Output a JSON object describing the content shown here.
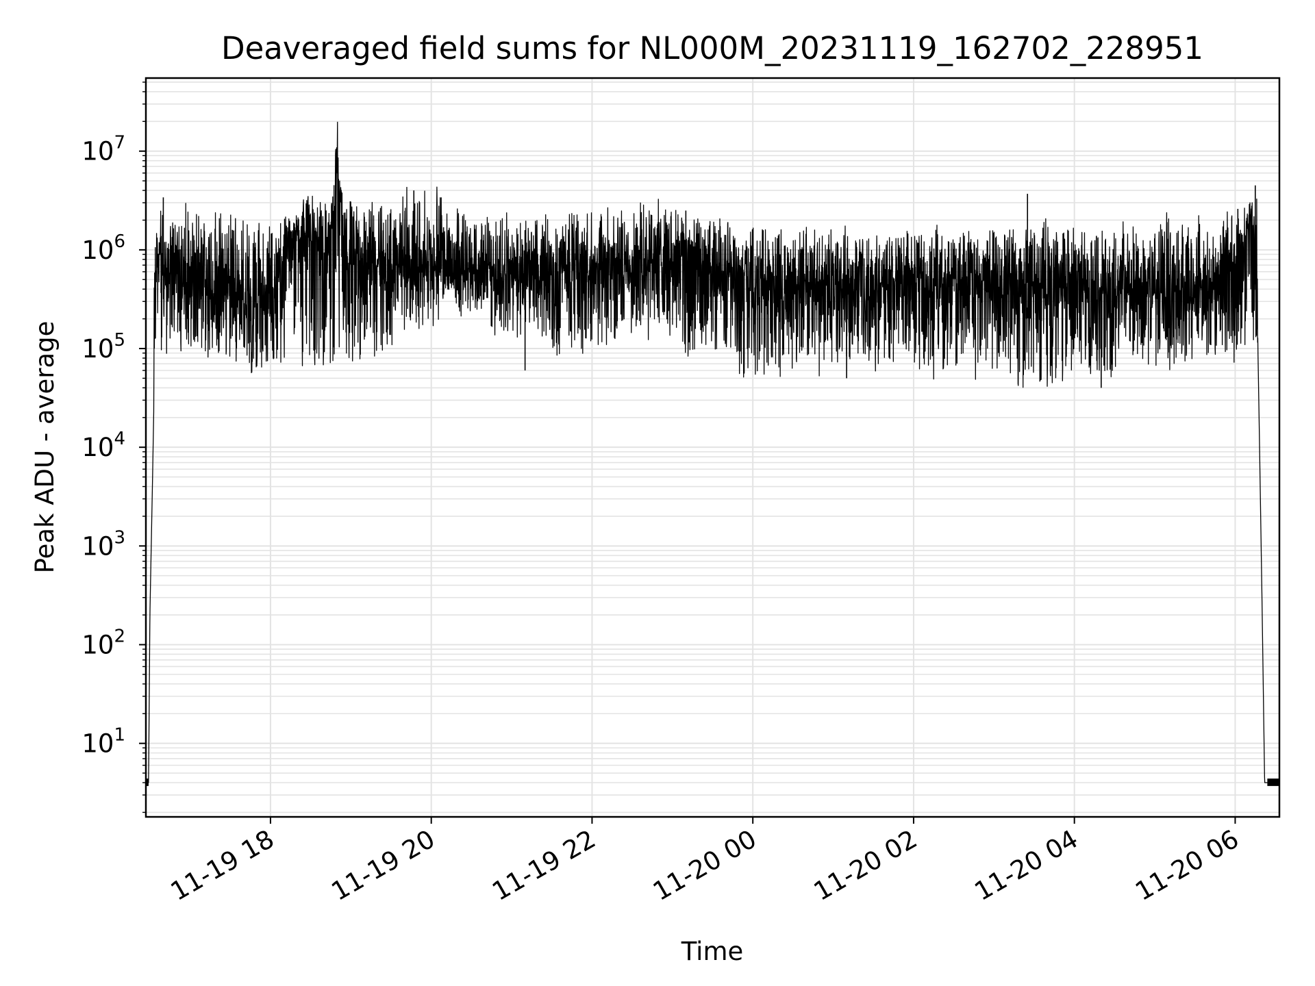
{
  "chart_data": {
    "type": "line",
    "title": "Deaveraged field sums for NL000M_20231119_162702_228951",
    "xlabel": "Time",
    "ylabel": "Peak ADU - average",
    "yscale": "log",
    "ylim": [
      1.8,
      55000000
    ],
    "xlim": [
      "2023-11-19 16:27",
      "2023-11-20 06:33"
    ],
    "grid": true,
    "line_color": "#000000",
    "grid_color": "#e3e3e3",
    "x_ticks": [
      "11-19 18",
      "11-19 20",
      "11-19 22",
      "11-20 00",
      "11-20 02",
      "11-20 04",
      "11-20 06"
    ],
    "y_ticks": [
      {
        "base": "10",
        "exp": "1"
      },
      {
        "base": "10",
        "exp": "2"
      },
      {
        "base": "10",
        "exp": "3"
      },
      {
        "base": "10",
        "exp": "4"
      },
      {
        "base": "10",
        "exp": "5"
      },
      {
        "base": "10",
        "exp": "6"
      },
      {
        "base": "10",
        "exp": "7"
      }
    ],
    "series": [
      {
        "x": [
          "2023-11-19 16:27",
          "2023-11-19 16:29",
          "2023-11-19 16:30",
          "2023-11-19 16:32",
          "2023-11-19 16:35",
          "2023-11-19 16:42",
          "2023-11-19 16:50",
          "2023-11-19 17:00",
          "2023-11-19 17:15",
          "2023-11-19 17:30",
          "2023-11-19 17:45",
          "2023-11-19 18:00",
          "2023-11-19 18:15",
          "2023-11-19 18:30",
          "2023-11-19 18:45",
          "2023-11-19 18:50",
          "2023-11-19 18:55",
          "2023-11-19 19:00",
          "2023-11-19 19:15",
          "2023-11-19 19:30",
          "2023-11-19 19:45",
          "2023-11-19 20:00",
          "2023-11-19 20:30",
          "2023-11-19 21:00",
          "2023-11-19 21:30",
          "2023-11-19 22:00",
          "2023-11-19 22:30",
          "2023-11-19 23:00",
          "2023-11-19 23:15",
          "2023-11-19 23:30",
          "2023-11-20 00:00",
          "2023-11-20 00:30",
          "2023-11-20 01:00",
          "2023-11-20 01:30",
          "2023-11-20 02:00",
          "2023-11-20 02:30",
          "2023-11-20 03:00",
          "2023-11-20 03:30",
          "2023-11-20 04:00",
          "2023-11-20 04:30",
          "2023-11-20 05:00",
          "2023-11-20 05:30",
          "2023-11-20 05:50",
          "2023-11-20 06:05",
          "2023-11-20 06:13",
          "2023-11-20 06:16",
          "2023-11-20 06:18",
          "2023-11-20 06:20",
          "2023-11-20 06:22",
          "2023-11-20 06:24",
          "2023-11-20 06:33"
        ],
        "y": [
          4,
          4,
          200,
          5000,
          1000000,
          550000,
          450000,
          500000,
          400000,
          350000,
          330000,
          300000,
          1400000,
          1600000,
          900000,
          25000000,
          900000,
          800000,
          700000,
          750000,
          650000,
          700000,
          600000,
          550000,
          700000,
          700000,
          750000,
          1000000,
          850000,
          600000,
          500000,
          450000,
          430000,
          450000,
          550000,
          470000,
          480000,
          460000,
          420000,
          400000,
          380000,
          420000,
          450000,
          800000,
          3000000,
          600000,
          15000,
          300,
          4,
          4,
          4
        ]
      }
    ],
    "noise_min": [
      100000,
      80000,
      60000,
      70000,
      90000,
      200000,
      250000,
      150000,
      100000,
      120000,
      150000,
      80000,
      60000,
      60000,
      70000,
      70000,
      60000,
      60000,
      50000,
      60000,
      70000,
      80000,
      90000
    ],
    "noise_max": [
      2500000,
      2200000,
      1800000,
      3000000,
      2800000,
      3500000,
      2500000,
      2000000,
      2000000,
      2200000,
      2600000,
      1800000,
      1500000,
      1600000,
      1500000,
      1400000,
      1500000,
      1700000,
      1600000,
      1500000,
      1700000,
      2000000,
      2500000
    ],
    "spikes": [
      {
        "x": "2023-11-19 16:40",
        "y": 3400000
      },
      {
        "x": "2023-11-19 18:50",
        "y": 25000000
      },
      {
        "x": "2023-11-19 19:47",
        "y": 4000000
      },
      {
        "x": "2023-11-19 21:10",
        "y": 60000
      },
      {
        "x": "2023-11-19 23:10",
        "y": 2500000
      },
      {
        "x": "2023-11-20 01:10",
        "y": 50000
      },
      {
        "x": "2023-11-20 03:25",
        "y": 3700000
      },
      {
        "x": "2023-11-20 04:20",
        "y": 40000
      },
      {
        "x": "2023-11-20 06:02",
        "y": 2600000
      },
      {
        "x": "2023-11-20 06:15",
        "y": 4500000
      }
    ]
  }
}
